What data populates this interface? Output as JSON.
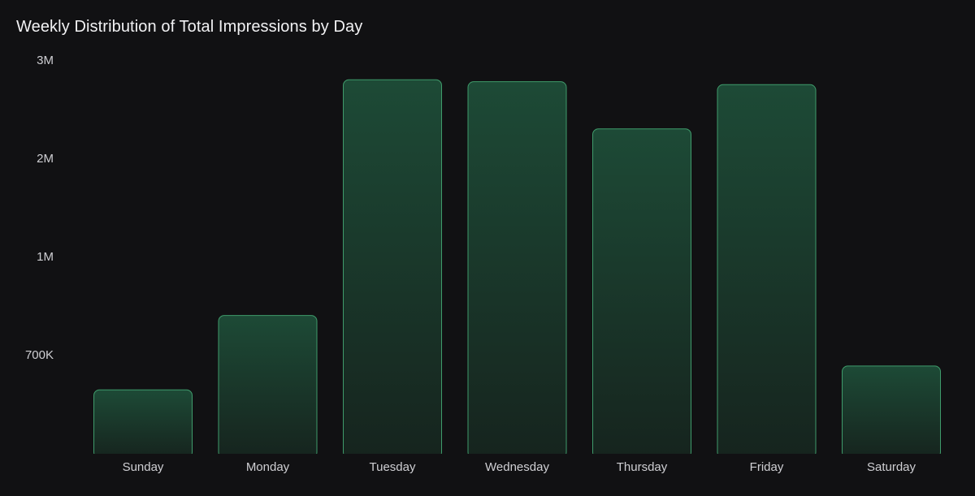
{
  "colors": {
    "background": "#111113",
    "bar_top": "#1d4a36",
    "bar_bottom": "#16241e",
    "bar_stroke": "#3f9b6b",
    "text": "#cfcfd3"
  },
  "chart_data": {
    "type": "bar",
    "title": "Weekly Distribution of Total Impressions by Day",
    "xlabel": "",
    "ylabel": "",
    "categories": [
      "Sunday",
      "Monday",
      "Tuesday",
      "Wednesday",
      "Thursday",
      "Friday",
      "Saturday"
    ],
    "values": [
      450000,
      820000,
      2800000,
      2780000,
      2300000,
      2750000,
      620000
    ],
    "y_ticks": [
      {
        "value": 700000,
        "label": "700K"
      },
      {
        "value": 1000000,
        "label": "1M"
      },
      {
        "value": 2000000,
        "label": "2M"
      },
      {
        "value": 3000000,
        "label": "3M"
      }
    ],
    "ylim": [
      0,
      3000000
    ],
    "grid": false,
    "legend": "none"
  }
}
